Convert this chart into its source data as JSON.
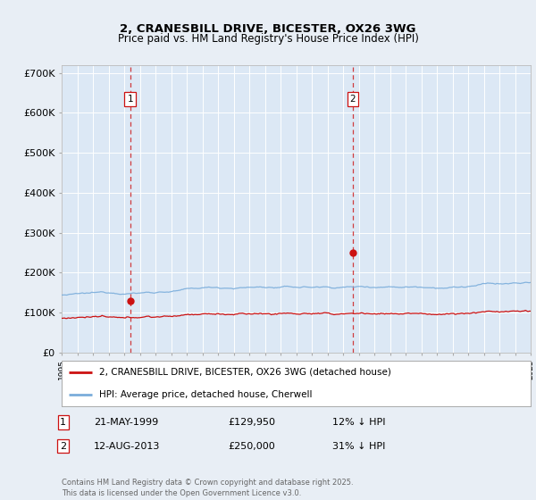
{
  "title": "2, CRANESBILL DRIVE, BICESTER, OX26 3WG",
  "subtitle": "Price paid vs. HM Land Registry's House Price Index (HPI)",
  "background_color": "#e8eef5",
  "plot_bg_color": "#dce8f5",
  "ylim": [
    0,
    720000
  ],
  "yticks": [
    0,
    100000,
    200000,
    300000,
    400000,
    500000,
    600000,
    700000
  ],
  "ytick_labels": [
    "£0",
    "£100K",
    "£200K",
    "£300K",
    "£400K",
    "£500K",
    "£600K",
    "£700K"
  ],
  "hpi_color": "#7aaddb",
  "price_color": "#cc1111",
  "vline_color": "#cc1111",
  "legend_house": "2, CRANESBILL DRIVE, BICESTER, OX26 3WG (detached house)",
  "legend_hpi": "HPI: Average price, detached house, Cherwell",
  "sale1_date": "21-MAY-1999",
  "sale1_price": "£129,950",
  "sale1_hpi": "12% ↓ HPI",
  "sale2_date": "12-AUG-2013",
  "sale2_price": "£250,000",
  "sale2_hpi": "31% ↓ HPI",
  "footer": "Contains HM Land Registry data © Crown copyright and database right 2025.\nThis data is licensed under the Open Government Licence v3.0.",
  "x_start_year": 1995,
  "x_end_year": 2025,
  "sale1_x": 1999.38,
  "sale2_x": 2013.62,
  "sale1_val": 129950,
  "sale2_val": 250000
}
